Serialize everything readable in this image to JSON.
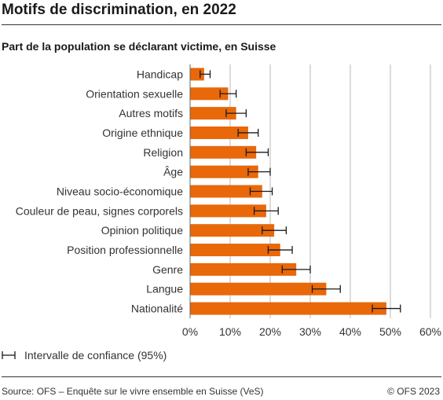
{
  "header": {
    "title": "Motifs de discrimination, en 2022",
    "subtitle": "Part de la population se déclarant victime, en Suisse"
  },
  "legend": {
    "label": "Intervalle de confiance (95%)"
  },
  "footer": {
    "source": "Source: OFS – Enquête sur le vivre ensemble en Suisse (VeS)",
    "copyright": "© OFS 2023"
  },
  "colors": {
    "bar": "#e8680a",
    "grid": "#b8b8b8",
    "errorbar": "#1a1a1a"
  },
  "chart_data": {
    "type": "bar",
    "orientation": "horizontal",
    "categories": [
      "Handicap",
      "Orientation sexuelle",
      "Autres motifs",
      "Origine ethnique",
      "Religion",
      "Âge",
      "Niveau socio-économique",
      "Couleur de peau, signes corporels",
      "Opinion politique",
      "Position professionnelle",
      "Genre",
      "Langue",
      "Nationalité"
    ],
    "values": [
      0.035,
      0.095,
      0.115,
      0.145,
      0.165,
      0.17,
      0.18,
      0.19,
      0.21,
      0.225,
      0.265,
      0.34,
      0.49
    ],
    "ci_low": [
      0.025,
      0.075,
      0.09,
      0.12,
      0.14,
      0.145,
      0.15,
      0.16,
      0.18,
      0.195,
      0.23,
      0.305,
      0.455
    ],
    "ci_high": [
      0.05,
      0.115,
      0.14,
      0.17,
      0.195,
      0.2,
      0.205,
      0.22,
      0.24,
      0.255,
      0.3,
      0.375,
      0.525
    ],
    "xlim": [
      0,
      0.6
    ],
    "xticks": [
      "0%",
      "10%",
      "20%",
      "30%",
      "40%",
      "50%",
      "60%"
    ],
    "grid": true,
    "legend_position": "bottom-left"
  }
}
